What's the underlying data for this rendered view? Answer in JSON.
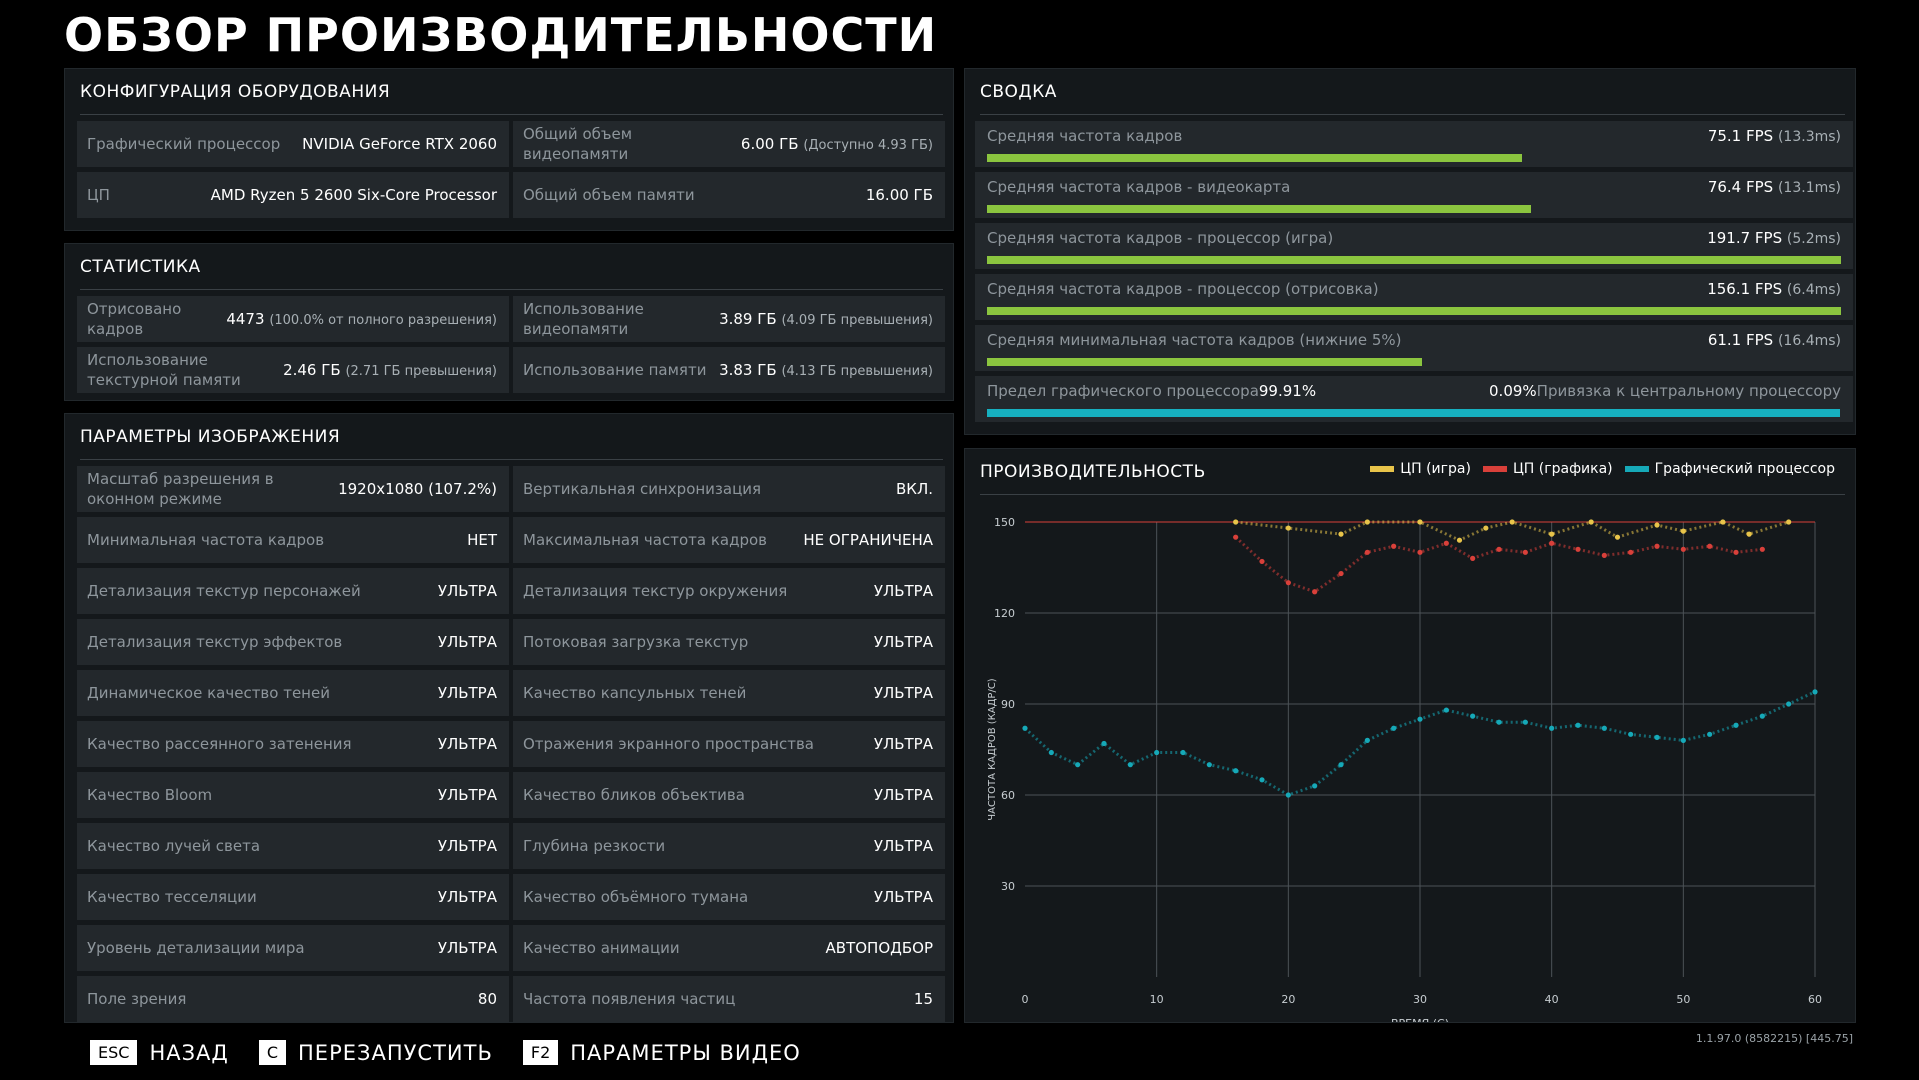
{
  "title": "ОБЗОР ПРОИЗВОДИТЕЛЬНОСТИ",
  "hardware": {
    "header": "КОНФИГУРАЦИЯ ОБОРУДОВАНИЯ",
    "gpu_label": "Графический процессор",
    "gpu_value": "NVIDIA GeForce RTX 2060",
    "vram_label": "Общий объем видеопамяти",
    "vram_value": "6.00 ГБ",
    "vram_sub": "(Доступно 4.93 ГБ)",
    "cpu_label": "ЦП",
    "cpu_value": "AMD Ryzen 5 2600 Six-Core Processor",
    "ram_label": "Общий объем памяти",
    "ram_value": "16.00 ГБ"
  },
  "stats": {
    "header": "СТАТИСТИКА",
    "frames_label": "Отрисовано кадров",
    "frames_value": "4473",
    "frames_sub": "(100.0% от полного разрешения)",
    "vram_use_label": "Использование видеопамяти",
    "vram_use_value": "3.89 ГБ",
    "vram_use_sub": "(4.09 ГБ превышения)",
    "tex_label": "Использование текстурной памяти",
    "tex_value": "2.46 ГБ",
    "tex_sub": "(2.71 ГБ превышения)",
    "mem_label": "Использование памяти",
    "mem_value": "3.83 ГБ",
    "mem_sub": "(4.13 ГБ превышения)"
  },
  "image_settings": {
    "header": "ПАРАМЕТРЫ ИЗОБРАЖЕНИЯ",
    "rows": [
      [
        {
          "label": "Масштаб разрешения в оконном режиме",
          "value": "1920x1080 (107.2%)"
        },
        {
          "label": "Вертикальная синхронизация",
          "value": "ВКЛ."
        }
      ],
      [
        {
          "label": "Минимальная частота кадров",
          "value": "НЕТ"
        },
        {
          "label": "Максимальная частота кадров",
          "value": "НЕ ОГРАНИЧЕНА"
        }
      ],
      [
        {
          "label": "Детализация текстур персонажей",
          "value": "УЛЬТРА"
        },
        {
          "label": "Детализация текстур окружения",
          "value": "УЛЬТРА"
        }
      ],
      [
        {
          "label": "Детализация текстур эффектов",
          "value": "УЛЬТРА"
        },
        {
          "label": "Потоковая загрузка текстур",
          "value": "УЛЬТРА"
        }
      ],
      [
        {
          "label": "Динамическое качество теней",
          "value": "УЛЬТРА"
        },
        {
          "label": "Качество капсульных теней",
          "value": "УЛЬТРА"
        }
      ],
      [
        {
          "label": "Качество рассеянного затенения",
          "value": "УЛЬТРА"
        },
        {
          "label": "Отражения экранного пространства",
          "value": "УЛЬТРА"
        }
      ],
      [
        {
          "label": "Качество Bloom",
          "value": "УЛЬТРА"
        },
        {
          "label": "Качество бликов объектива",
          "value": "УЛЬТРА"
        }
      ],
      [
        {
          "label": "Качество лучей света",
          "value": "УЛЬТРА"
        },
        {
          "label": "Глубина резкости",
          "value": "УЛЬТРА"
        }
      ],
      [
        {
          "label": "Качество тесселяции",
          "value": "УЛЬТРА"
        },
        {
          "label": "Качество объёмного тумана",
          "value": "УЛЬТРА"
        }
      ],
      [
        {
          "label": "Уровень детализации мира",
          "value": "УЛЬТРА"
        },
        {
          "label": "Качество анимации",
          "value": "АВТОПОДБОР"
        }
      ],
      [
        {
          "label": "Поле зрения",
          "value": "80"
        },
        {
          "label": "Частота появления частиц",
          "value": "15"
        }
      ]
    ]
  },
  "summary": {
    "header": "СВОДКА",
    "rows": [
      {
        "label": "Средняя частота кадров",
        "fps": "75.1 FPS",
        "ms": "(13.3ms)",
        "fill": 0.626
      },
      {
        "label": "Средняя частота кадров - видеокарта",
        "fps": "76.4 FPS",
        "ms": "(13.1ms)",
        "fill": 0.637
      },
      {
        "label": "Средняя частота кадров - процессор (игра)",
        "fps": "191.7 FPS",
        "ms": "(5.2ms)",
        "fill": 1.0
      },
      {
        "label": "Средняя частота кадров - процессор (отрисовка)",
        "fps": "156.1 FPS",
        "ms": "(6.4ms)",
        "fill": 1.0
      },
      {
        "label": "Средняя минимальная частота кадров (нижние 5%)",
        "fps": "61.1 FPS",
        "ms": "(16.4ms)",
        "fill": 0.509
      }
    ],
    "gpu_bound_label": "Предел графического процессора",
    "gpu_bound_value": "99.91%",
    "cpu_bound_value": "0.09%",
    "cpu_bound_label": "Привязка к центральному процессору",
    "gpu_bound_fill": 0.9991
  },
  "performance": {
    "header": "ПРОИЗВОДИТЕЛЬНОСТЬ",
    "legend": [
      {
        "name": "ЦП (игра)",
        "color": "#e8c44a"
      },
      {
        "name": "ЦП (графика)",
        "color": "#d9403a"
      },
      {
        "name": "Графический процессор",
        "color": "#16a9b8"
      }
    ]
  },
  "chart_data": {
    "type": "scatter",
    "xlabel": "ВРЕМЯ (С)",
    "ylabel": "ЧАСТОТА КАДРОВ (КАДР/С)",
    "xlim": [
      0,
      60
    ],
    "ylim": [
      0,
      150
    ],
    "x_ticks": [
      "0",
      "10",
      "20",
      "30",
      "40",
      "50",
      "60"
    ],
    "y_ticks": [
      "30",
      "60",
      "90",
      "120",
      "150"
    ],
    "grid": true,
    "legend_position": "top-right",
    "series": [
      {
        "name": "Графический процессор",
        "color": "#16a9b8",
        "x": [
          0,
          2,
          4,
          6,
          8,
          10,
          12,
          14,
          16,
          18,
          20,
          22,
          24,
          26,
          28,
          30,
          32,
          34,
          36,
          38,
          40,
          42,
          44,
          46,
          48,
          50,
          52,
          54,
          56,
          58,
          60
        ],
        "y": [
          82,
          74,
          70,
          77,
          70,
          74,
          74,
          70,
          68,
          65,
          60,
          63,
          70,
          78,
          82,
          85,
          88,
          86,
          84,
          84,
          82,
          83,
          82,
          80,
          79,
          78,
          80,
          83,
          86,
          90,
          94
        ]
      },
      {
        "name": "ЦП (графика)",
        "color": "#d9403a",
        "x": [
          16,
          18,
          20,
          22,
          24,
          26,
          28,
          30,
          32,
          34,
          36,
          38,
          40,
          42,
          44,
          46,
          48,
          50,
          52,
          54,
          56
        ],
        "y": [
          145,
          137,
          130,
          127,
          133,
          140,
          142,
          140,
          143,
          138,
          141,
          140,
          143,
          141,
          139,
          140,
          142,
          141,
          142,
          140,
          141
        ]
      },
      {
        "name": "ЦП (игра)",
        "color": "#e8c44a",
        "x": [
          16,
          20,
          24,
          26,
          30,
          33,
          35,
          37,
          40,
          43,
          45,
          48,
          50,
          53,
          55,
          58
        ],
        "y": [
          150,
          148,
          146,
          150,
          150,
          144,
          148,
          150,
          146,
          150,
          145,
          149,
          147,
          150,
          146,
          150
        ]
      }
    ]
  },
  "footer": {
    "back_key": "ESC",
    "back_label": "НАЗАД",
    "restart_key": "C",
    "restart_label": "ПЕРЕЗАПУСТИТЬ",
    "video_key": "F2",
    "video_label": "ПАРАМЕТРЫ ВИДЕО"
  },
  "version": "1.1.97.0 (8582215) [445.75]"
}
